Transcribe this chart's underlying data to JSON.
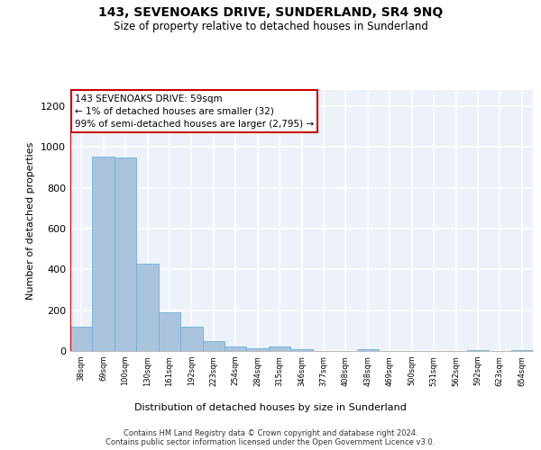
{
  "title": "143, SEVENOAKS DRIVE, SUNDERLAND, SR4 9NQ",
  "subtitle": "Size of property relative to detached houses in Sunderland",
  "xlabel": "Distribution of detached houses by size in Sunderland",
  "ylabel": "Number of detached properties",
  "categories": [
    "38sqm",
    "69sqm",
    "100sqm",
    "130sqm",
    "161sqm",
    "192sqm",
    "223sqm",
    "254sqm",
    "284sqm",
    "315sqm",
    "346sqm",
    "377sqm",
    "408sqm",
    "438sqm",
    "469sqm",
    "500sqm",
    "531sqm",
    "562sqm",
    "592sqm",
    "623sqm",
    "654sqm"
  ],
  "values": [
    120,
    955,
    950,
    430,
    190,
    120,
    50,
    20,
    15,
    20,
    10,
    0,
    0,
    8,
    0,
    0,
    0,
    0,
    5,
    0,
    5
  ],
  "bar_color": "#aac4de",
  "bar_edge_color": "#6aafd6",
  "highlight_color": "#cc0000",
  "annotation_text": "143 SEVENOAKS DRIVE: 59sqm\n← 1% of detached houses are smaller (32)\n99% of semi-detached houses are larger (2,795) →",
  "annotation_box_color": "#ffffff",
  "annotation_box_edge_color": "#cc0000",
  "ylim": [
    0,
    1280
  ],
  "yticks": [
    0,
    200,
    400,
    600,
    800,
    1000,
    1200
  ],
  "background_color": "#edf2fa",
  "grid_color": "#ffffff",
  "footer_line1": "Contains HM Land Registry data © Crown copyright and database right 2024.",
  "footer_line2": "Contains public sector information licensed under the Open Government Licence v3.0."
}
